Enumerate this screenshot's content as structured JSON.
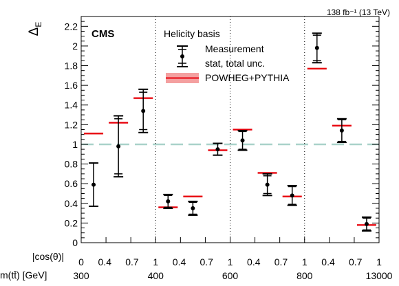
{
  "chart_data": {
    "type": "scatter",
    "ylabel": "Δ",
    "ylabel_sub": "E",
    "ylim": [
      0,
      2.3
    ],
    "yticks": [
      "0",
      "0.2",
      "0.4",
      "0.6",
      "0.8",
      "1",
      "1.2",
      "1.4",
      "1.6",
      "1.8",
      "2",
      "2.2"
    ],
    "lumi_label": "138 fb⁻¹ (13 TeV)",
    "experiment": "CMS",
    "basis_label": "Helicity basis",
    "reference_line": 1,
    "x_row_cos": {
      "label": "|cos(θ)|",
      "ticks": [
        "0",
        "0.4",
        "0.7",
        "1",
        "0.4",
        "0.7",
        "1",
        "0.4",
        "0.7",
        "1",
        "0.4",
        "0.7",
        "1"
      ]
    },
    "x_row_mass": {
      "label": "m(tt̄) [GeV]",
      "ticks": [
        "300",
        "400",
        "600",
        "800",
        "13000"
      ]
    },
    "legend": {
      "measurement": "Measurement",
      "measurement_sub": "stat, total unc.",
      "prediction": "POWHEG+PYTHIA"
    },
    "series": [
      {
        "name": "Measurement",
        "values": [
          0.59,
          0.98,
          1.34,
          0.42,
          0.35,
          0.95,
          1.04,
          0.59,
          0.48,
          1.98,
          1.14,
          0.19
        ],
        "stat_err": [
          0.22,
          0.28,
          0.19,
          0.06,
          0.06,
          0.06,
          0.09,
          0.09,
          0.09,
          0.13,
          0.11,
          0.06
        ],
        "total_err": [
          0.22,
          0.31,
          0.22,
          0.07,
          0.07,
          0.06,
          0.1,
          0.11,
          0.1,
          0.15,
          0.12,
          0.07
        ]
      },
      {
        "name": "POWHEG+PYTHIA",
        "values": [
          1.11,
          1.22,
          1.47,
          0.36,
          0.47,
          0.94,
          1.15,
          0.71,
          0.47,
          1.77,
          1.19,
          0.18
        ]
      }
    ],
    "colors": {
      "measurement": "#000000",
      "prediction": "#e8000b",
      "prediction_band": "#f4a0a0",
      "reference": "#a9d2c9"
    }
  }
}
